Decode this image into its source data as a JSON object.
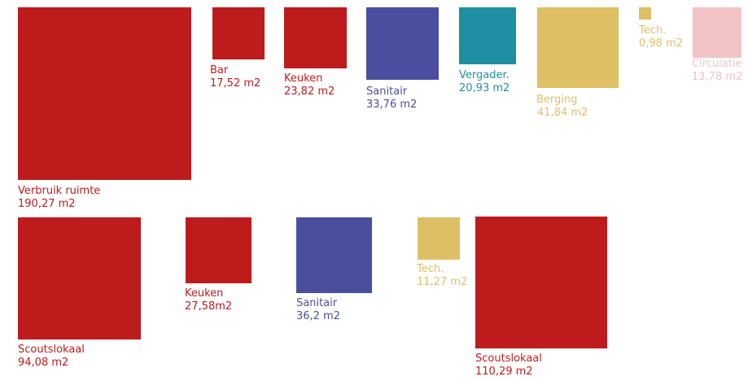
{
  "colors": {
    "red": "#bd1b1c",
    "blue": "#4a4e9f",
    "teal": "#1f8fa3",
    "yellow": "#dfbf64",
    "pink": "#f1c3c5"
  },
  "rooms": [
    {
      "name": "Verbruik ruimte",
      "area": "190,27 m2",
      "area_value": 190.27,
      "color": "red"
    },
    {
      "name": "Bar",
      "area": "17,52 m2",
      "area_value": 17.52,
      "color": "red"
    },
    {
      "name": "Keuken",
      "area": "23,82 m2",
      "area_value": 23.82,
      "color": "red"
    },
    {
      "name": "Sanitair",
      "area": "33,76 m2",
      "area_value": 33.76,
      "color": "blue"
    },
    {
      "name": "Vergader.",
      "area": "20,93 m2",
      "area_value": 20.93,
      "color": "teal"
    },
    {
      "name": "Berging",
      "area": "41,84 m2",
      "area_value": 41.84,
      "color": "yellow"
    },
    {
      "name": "Tech.",
      "area": "0,98 m2",
      "area_value": 0.98,
      "color": "yellow"
    },
    {
      "name": "Circulatie",
      "area": "13,78 m2",
      "area_value": 13.78,
      "color": "pink"
    },
    {
      "name": "Scoutslokaal",
      "area": "94,08 m2",
      "area_value": 94.08,
      "color": "red"
    },
    {
      "name": "Keuken",
      "area": "27,58m2",
      "area_value": 27.58,
      "color": "red"
    },
    {
      "name": "Sanitair",
      "area": "36,2 m2",
      "area_value": 36.2,
      "color": "blue"
    },
    {
      "name": "Tech.",
      "area": "11,27 m2",
      "area_value": 11.27,
      "color": "yellow"
    },
    {
      "name": "Scoutslokaal",
      "area": "110,29 m2",
      "area_value": 110.29,
      "color": "red"
    }
  ]
}
